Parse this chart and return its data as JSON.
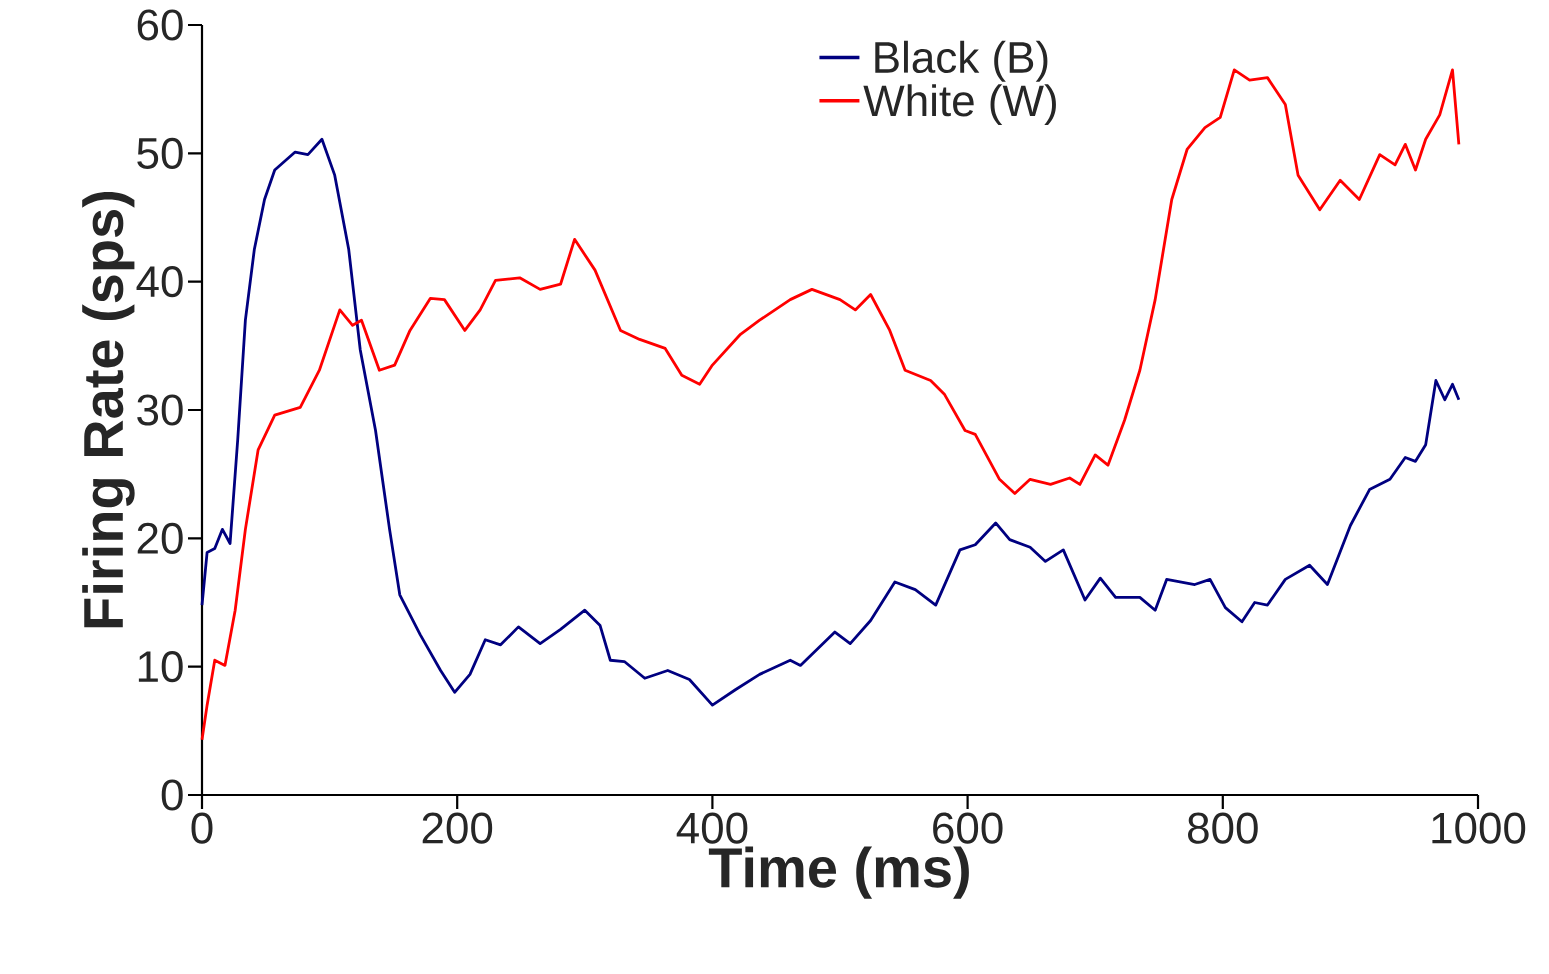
{
  "chart_data": {
    "type": "line",
    "xlabel": "Time (ms)",
    "ylabel": "Firing Rate (sps)",
    "xlim": [
      0,
      1000
    ],
    "ylim": [
      0,
      60
    ],
    "xticks": [
      0,
      200,
      400,
      600,
      800,
      1000
    ],
    "yticks": [
      0,
      10,
      20,
      30,
      40,
      50,
      60
    ],
    "grid": false,
    "legend": "top",
    "marker": "none",
    "line_style": "solid",
    "series": [
      {
        "name": "Black (B)",
        "color": "#000080",
        "x": [
          0,
          4,
          10,
          16,
          22,
          28,
          34,
          41,
          49,
          57,
          73,
          83,
          94,
          104,
          115,
          124,
          136,
          147,
          155,
          171,
          187,
          198,
          210,
          222,
          234,
          248,
          265,
          281,
          300,
          312,
          320,
          331,
          347,
          365,
          382,
          400,
          418,
          437,
          461,
          469,
          496,
          508,
          524,
          543,
          559,
          575,
          594,
          606,
          622,
          633,
          649,
          661,
          675,
          692,
          704,
          716,
          735,
          747,
          756,
          778,
          790,
          802,
          815,
          825,
          835,
          849,
          868,
          882,
          900,
          915,
          931,
          943,
          951,
          959,
          967,
          974,
          980,
          985
        ],
        "values": [
          14.8,
          18.9,
          19.2,
          20.7,
          19.6,
          27.7,
          37,
          42.5,
          46.4,
          48.7,
          50.1,
          49.9,
          51.1,
          48.3,
          42.5,
          34.7,
          28.4,
          20.7,
          15.6,
          12.5,
          9.7,
          8.0,
          9.4,
          12.1,
          11.7,
          13.1,
          11.8,
          12.9,
          14.4,
          13.2,
          10.5,
          10.4,
          9.1,
          9.7,
          9.0,
          7.0,
          8.2,
          9.4,
          10.5,
          10.1,
          12.7,
          11.8,
          13.6,
          16.6,
          16.0,
          14.8,
          19.1,
          19.5,
          21.2,
          19.9,
          19.3,
          18.2,
          19.1,
          15.2,
          16.9,
          15.4,
          15.4,
          14.4,
          16.8,
          16.4,
          16.8,
          14.6,
          13.5,
          15.0,
          14.8,
          16.8,
          17.9,
          16.4,
          21.0,
          23.8,
          24.6,
          26.3,
          26.0,
          27.3,
          32.3,
          30.8,
          32.0,
          30.8
        ]
      },
      {
        "name": "White (W)",
        "color": "#ff0000",
        "x": [
          0,
          4,
          10,
          18,
          26,
          34,
          44,
          57,
          77,
          92,
          108,
          118,
          125,
          139,
          151,
          163,
          179,
          190,
          206,
          218,
          230,
          249,
          265,
          281,
          292,
          308,
          328,
          343,
          363,
          376,
          390,
          400,
          422,
          437,
          461,
          478,
          500,
          512,
          524,
          539,
          551,
          571,
          582,
          598,
          606,
          625,
          637,
          649,
          665,
          680,
          688,
          700,
          710,
          723,
          735,
          747,
          760,
          772,
          786,
          798,
          809,
          821,
          835,
          849,
          859,
          876,
          892,
          907,
          923,
          935,
          943,
          951,
          959,
          970,
          980,
          985
        ],
        "values": [
          4.3,
          7.0,
          10.5,
          10.1,
          14.4,
          20.7,
          26.9,
          29.6,
          30.2,
          33.1,
          37.8,
          36.6,
          37.0,
          33.1,
          33.5,
          36.2,
          38.7,
          38.6,
          36.2,
          37.8,
          40.1,
          40.3,
          39.4,
          39.8,
          43.3,
          40.9,
          36.2,
          35.5,
          34.8,
          32.7,
          32.0,
          33.5,
          35.9,
          37.0,
          38.6,
          39.4,
          38.6,
          37.8,
          39.0,
          36.2,
          33.1,
          32.3,
          31.2,
          28.4,
          28.1,
          24.6,
          23.5,
          24.6,
          24.2,
          24.7,
          24.2,
          26.5,
          25.7,
          29.2,
          33.1,
          38.6,
          46.4,
          50.3,
          52.0,
          52.8,
          56.5,
          55.7,
          55.9,
          53.8,
          48.3,
          45.6,
          47.9,
          46.4,
          49.9,
          49.1,
          50.7,
          48.7,
          51.1,
          53.0,
          56.5,
          50.7
        ]
      }
    ]
  }
}
